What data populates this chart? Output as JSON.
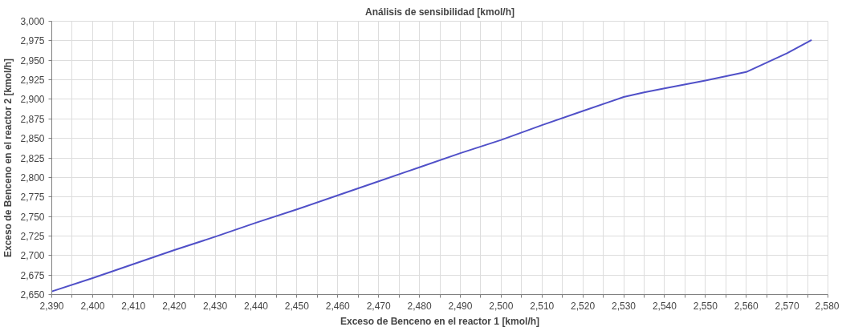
{
  "chart_data": {
    "type": "line",
    "title": "Análisis de sensibilidad [kmol/h]",
    "xlabel": "Exceso de Benceno en el reactor 1 [kmol/h]",
    "ylabel": "Exceso de Benceno en el reactor 2 [kmol/h]",
    "x": [
      2390,
      2400,
      2410,
      2420,
      2430,
      2440,
      2450,
      2460,
      2470,
      2480,
      2490,
      2500,
      2510,
      2520,
      2530,
      2535,
      2540,
      2550,
      2560,
      2570,
      2576
    ],
    "series": [
      {
        "color": "#5050c8",
        "values": [
          2654,
          2671,
          2689,
          2707,
          2724,
          2742,
          2759,
          2777,
          2795,
          2813,
          2831,
          2848,
          2867,
          2885,
          2903,
          2909,
          2914,
          2924,
          2935,
          2959,
          2976
        ]
      }
    ],
    "xlim": [
      2390,
      2580
    ],
    "xticks": [
      {
        "value": 2390,
        "label": "2,390"
      },
      {
        "value": 2395,
        "label": null
      },
      {
        "value": 2400,
        "label": "2,400"
      },
      {
        "value": 2405,
        "label": null
      },
      {
        "value": 2410,
        "label": "2,410"
      },
      {
        "value": 2415,
        "label": null
      },
      {
        "value": 2420,
        "label": "2,420"
      },
      {
        "value": 2425,
        "label": null
      },
      {
        "value": 2430,
        "label": "2,430"
      },
      {
        "value": 2435,
        "label": null
      },
      {
        "value": 2440,
        "label": "2,440"
      },
      {
        "value": 2445,
        "label": null
      },
      {
        "value": 2450,
        "label": "2,450"
      },
      {
        "value": 2455,
        "label": null
      },
      {
        "value": 2460,
        "label": "2,460"
      },
      {
        "value": 2465,
        "label": null
      },
      {
        "value": 2470,
        "label": "2,470"
      },
      {
        "value": 2475,
        "label": null
      },
      {
        "value": 2480,
        "label": "2,480"
      },
      {
        "value": 2485,
        "label": null
      },
      {
        "value": 2490,
        "label": "2,490"
      },
      {
        "value": 2495,
        "label": null
      },
      {
        "value": 2500,
        "label": "2,500"
      },
      {
        "value": 2505,
        "label": null
      },
      {
        "value": 2510,
        "label": "2,510"
      },
      {
        "value": 2515,
        "label": null
      },
      {
        "value": 2520,
        "label": "2,520"
      },
      {
        "value": 2525,
        "label": null
      },
      {
        "value": 2530,
        "label": "2,530"
      },
      {
        "value": 2535,
        "label": null
      },
      {
        "value": 2540,
        "label": "2,540"
      },
      {
        "value": 2545,
        "label": null
      },
      {
        "value": 2550,
        "label": "2,550"
      },
      {
        "value": 2555,
        "label": null
      },
      {
        "value": 2560,
        "label": "2,560"
      },
      {
        "value": 2565,
        "label": null
      },
      {
        "value": 2570,
        "label": "2,570"
      },
      {
        "value": 2575,
        "label": null
      },
      {
        "value": 2580,
        "label": "2,580"
      }
    ],
    "ylim": [
      2650,
      3000
    ],
    "yticks": [
      {
        "value": 2650,
        "label": "2,650"
      },
      {
        "value": 2675,
        "label": "2,675"
      },
      {
        "value": 2700,
        "label": "2,700"
      },
      {
        "value": 2725,
        "label": "2,725"
      },
      {
        "value": 2750,
        "label": "2,750"
      },
      {
        "value": 2775,
        "label": "2,775"
      },
      {
        "value": 2800,
        "label": "2,800"
      },
      {
        "value": 2825,
        "label": "2,825"
      },
      {
        "value": 2850,
        "label": "2,850"
      },
      {
        "value": 2875,
        "label": "2,875"
      },
      {
        "value": 2900,
        "label": "2,900"
      },
      {
        "value": 2925,
        "label": "2,925"
      },
      {
        "value": 2950,
        "label": "2,950"
      },
      {
        "value": 2975,
        "label": "2,975"
      },
      {
        "value": 3000,
        "label": "3,000"
      }
    ],
    "grid": true,
    "marker": "none",
    "line_style": "solid"
  }
}
